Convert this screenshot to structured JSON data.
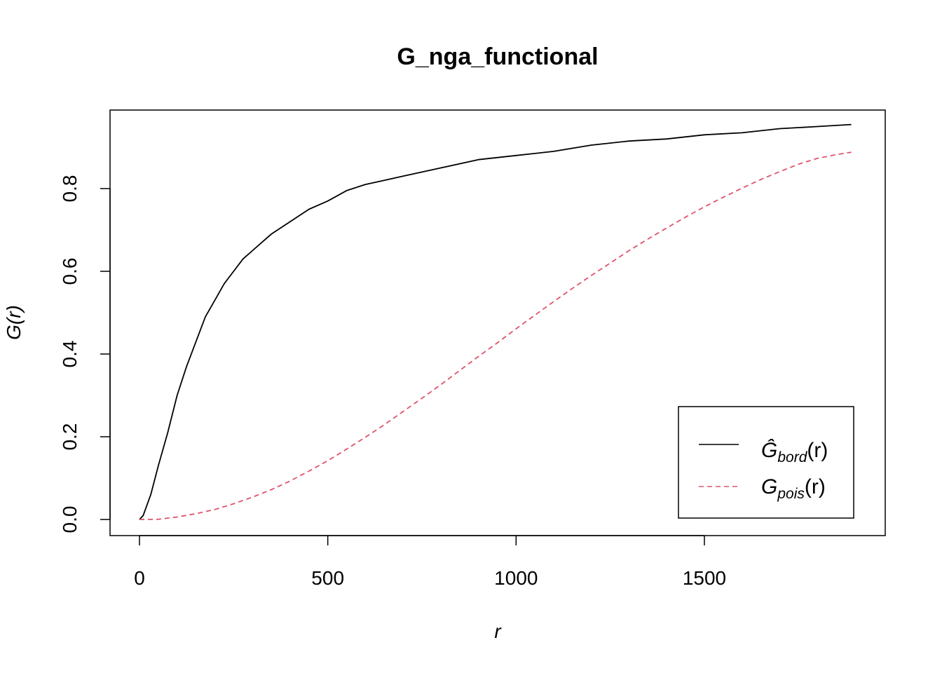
{
  "chart_data": {
    "type": "line",
    "title": "G_nga_functional",
    "xlabel": "r",
    "ylabel": "G(r)",
    "xlim": [
      0,
      1900
    ],
    "ylim": [
      0,
      0.96
    ],
    "x_ticks": [
      0,
      500,
      1000,
      1500
    ],
    "x_tick_labels": [
      "0",
      "500",
      "1000",
      "1500"
    ],
    "y_ticks": [
      0.0,
      0.2,
      0.4,
      0.6,
      0.8
    ],
    "y_tick_labels": [
      "0.0",
      "0.2",
      "0.4",
      "0.6",
      "0.8"
    ],
    "grid": false,
    "legend_position": "bottom-right",
    "series": [
      {
        "name": "Ĝbord(r)",
        "color": "#000000",
        "dash": "solid",
        "x": [
          0,
          10,
          30,
          50,
          75,
          100,
          125,
          150,
          175,
          200,
          225,
          250,
          275,
          300,
          350,
          400,
          450,
          500,
          550,
          600,
          650,
          700,
          800,
          900,
          1000,
          1100,
          1200,
          1300,
          1400,
          1500,
          1600,
          1700,
          1800,
          1890
        ],
        "y": [
          0.0,
          0.01,
          0.06,
          0.13,
          0.21,
          0.3,
          0.37,
          0.43,
          0.49,
          0.53,
          0.57,
          0.6,
          0.63,
          0.65,
          0.69,
          0.72,
          0.75,
          0.77,
          0.795,
          0.81,
          0.82,
          0.83,
          0.85,
          0.87,
          0.88,
          0.89,
          0.905,
          0.915,
          0.92,
          0.93,
          0.935,
          0.945,
          0.95,
          0.955
        ]
      },
      {
        "name": "Gpois(r)",
        "color": "#DF536B",
        "dash": "dashed",
        "x": [
          0,
          50,
          100,
          150,
          200,
          250,
          300,
          350,
          400,
          450,
          500,
          550,
          600,
          650,
          700,
          750,
          800,
          850,
          900,
          950,
          1000,
          1050,
          1100,
          1150,
          1200,
          1250,
          1300,
          1350,
          1400,
          1450,
          1500,
          1550,
          1600,
          1650,
          1700,
          1750,
          1800,
          1850,
          1890
        ],
        "y": [
          0.0,
          0.0005,
          0.006,
          0.014,
          0.024,
          0.038,
          0.054,
          0.072,
          0.093,
          0.117,
          0.142,
          0.17,
          0.199,
          0.229,
          0.261,
          0.293,
          0.326,
          0.36,
          0.394,
          0.427,
          0.461,
          0.494,
          0.527,
          0.559,
          0.59,
          0.62,
          0.65,
          0.678,
          0.705,
          0.731,
          0.756,
          0.779,
          0.801,
          0.822,
          0.841,
          0.859,
          0.873,
          0.882,
          0.888
        ]
      }
    ]
  },
  "legend": {
    "entries": [
      {
        "base": "Ĝ",
        "sub": "bord",
        "arg": "(r)"
      },
      {
        "base": "G",
        "sub": "pois",
        "arg": "(r)"
      }
    ]
  }
}
